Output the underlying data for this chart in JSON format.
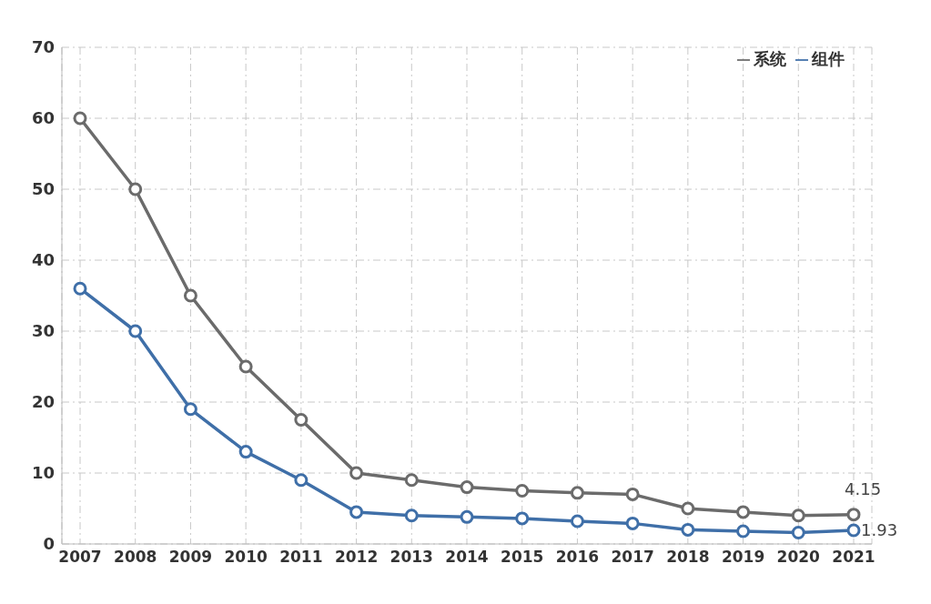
{
  "chart_data": {
    "type": "line",
    "categories": [
      "2007",
      "2008",
      "2009",
      "2010",
      "2011",
      "2012",
      "2013",
      "2014",
      "2015",
      "2016",
      "2017",
      "2018",
      "2019",
      "2020",
      "2021"
    ],
    "series": [
      {
        "name": "组件",
        "color": "#3f6fa8",
        "values": [
          36,
          30,
          19,
          13,
          9,
          4.5,
          4,
          3.8,
          3.6,
          3.2,
          2.9,
          2,
          1.8,
          1.6,
          1.93
        ],
        "value_labels": [
          null,
          null,
          null,
          null,
          null,
          null,
          null,
          null,
          null,
          null,
          null,
          null,
          null,
          null,
          "1.93"
        ]
      },
      {
        "name": "系统",
        "color": "#6b6b6b",
        "values": [
          60,
          50,
          35,
          25,
          17.5,
          10,
          9,
          8,
          7.5,
          7.2,
          7,
          5,
          4.5,
          4,
          4.15
        ],
        "value_labels": [
          null,
          null,
          null,
          null,
          null,
          null,
          null,
          null,
          null,
          null,
          null,
          null,
          null,
          null,
          "4.15"
        ]
      }
    ],
    "ylim": [
      0,
      70
    ],
    "yticks": [
      0,
      10,
      20,
      30,
      40,
      50,
      60,
      70
    ],
    "grid": true,
    "legend": "top right",
    "marker": "circle",
    "line_style": "solid"
  }
}
